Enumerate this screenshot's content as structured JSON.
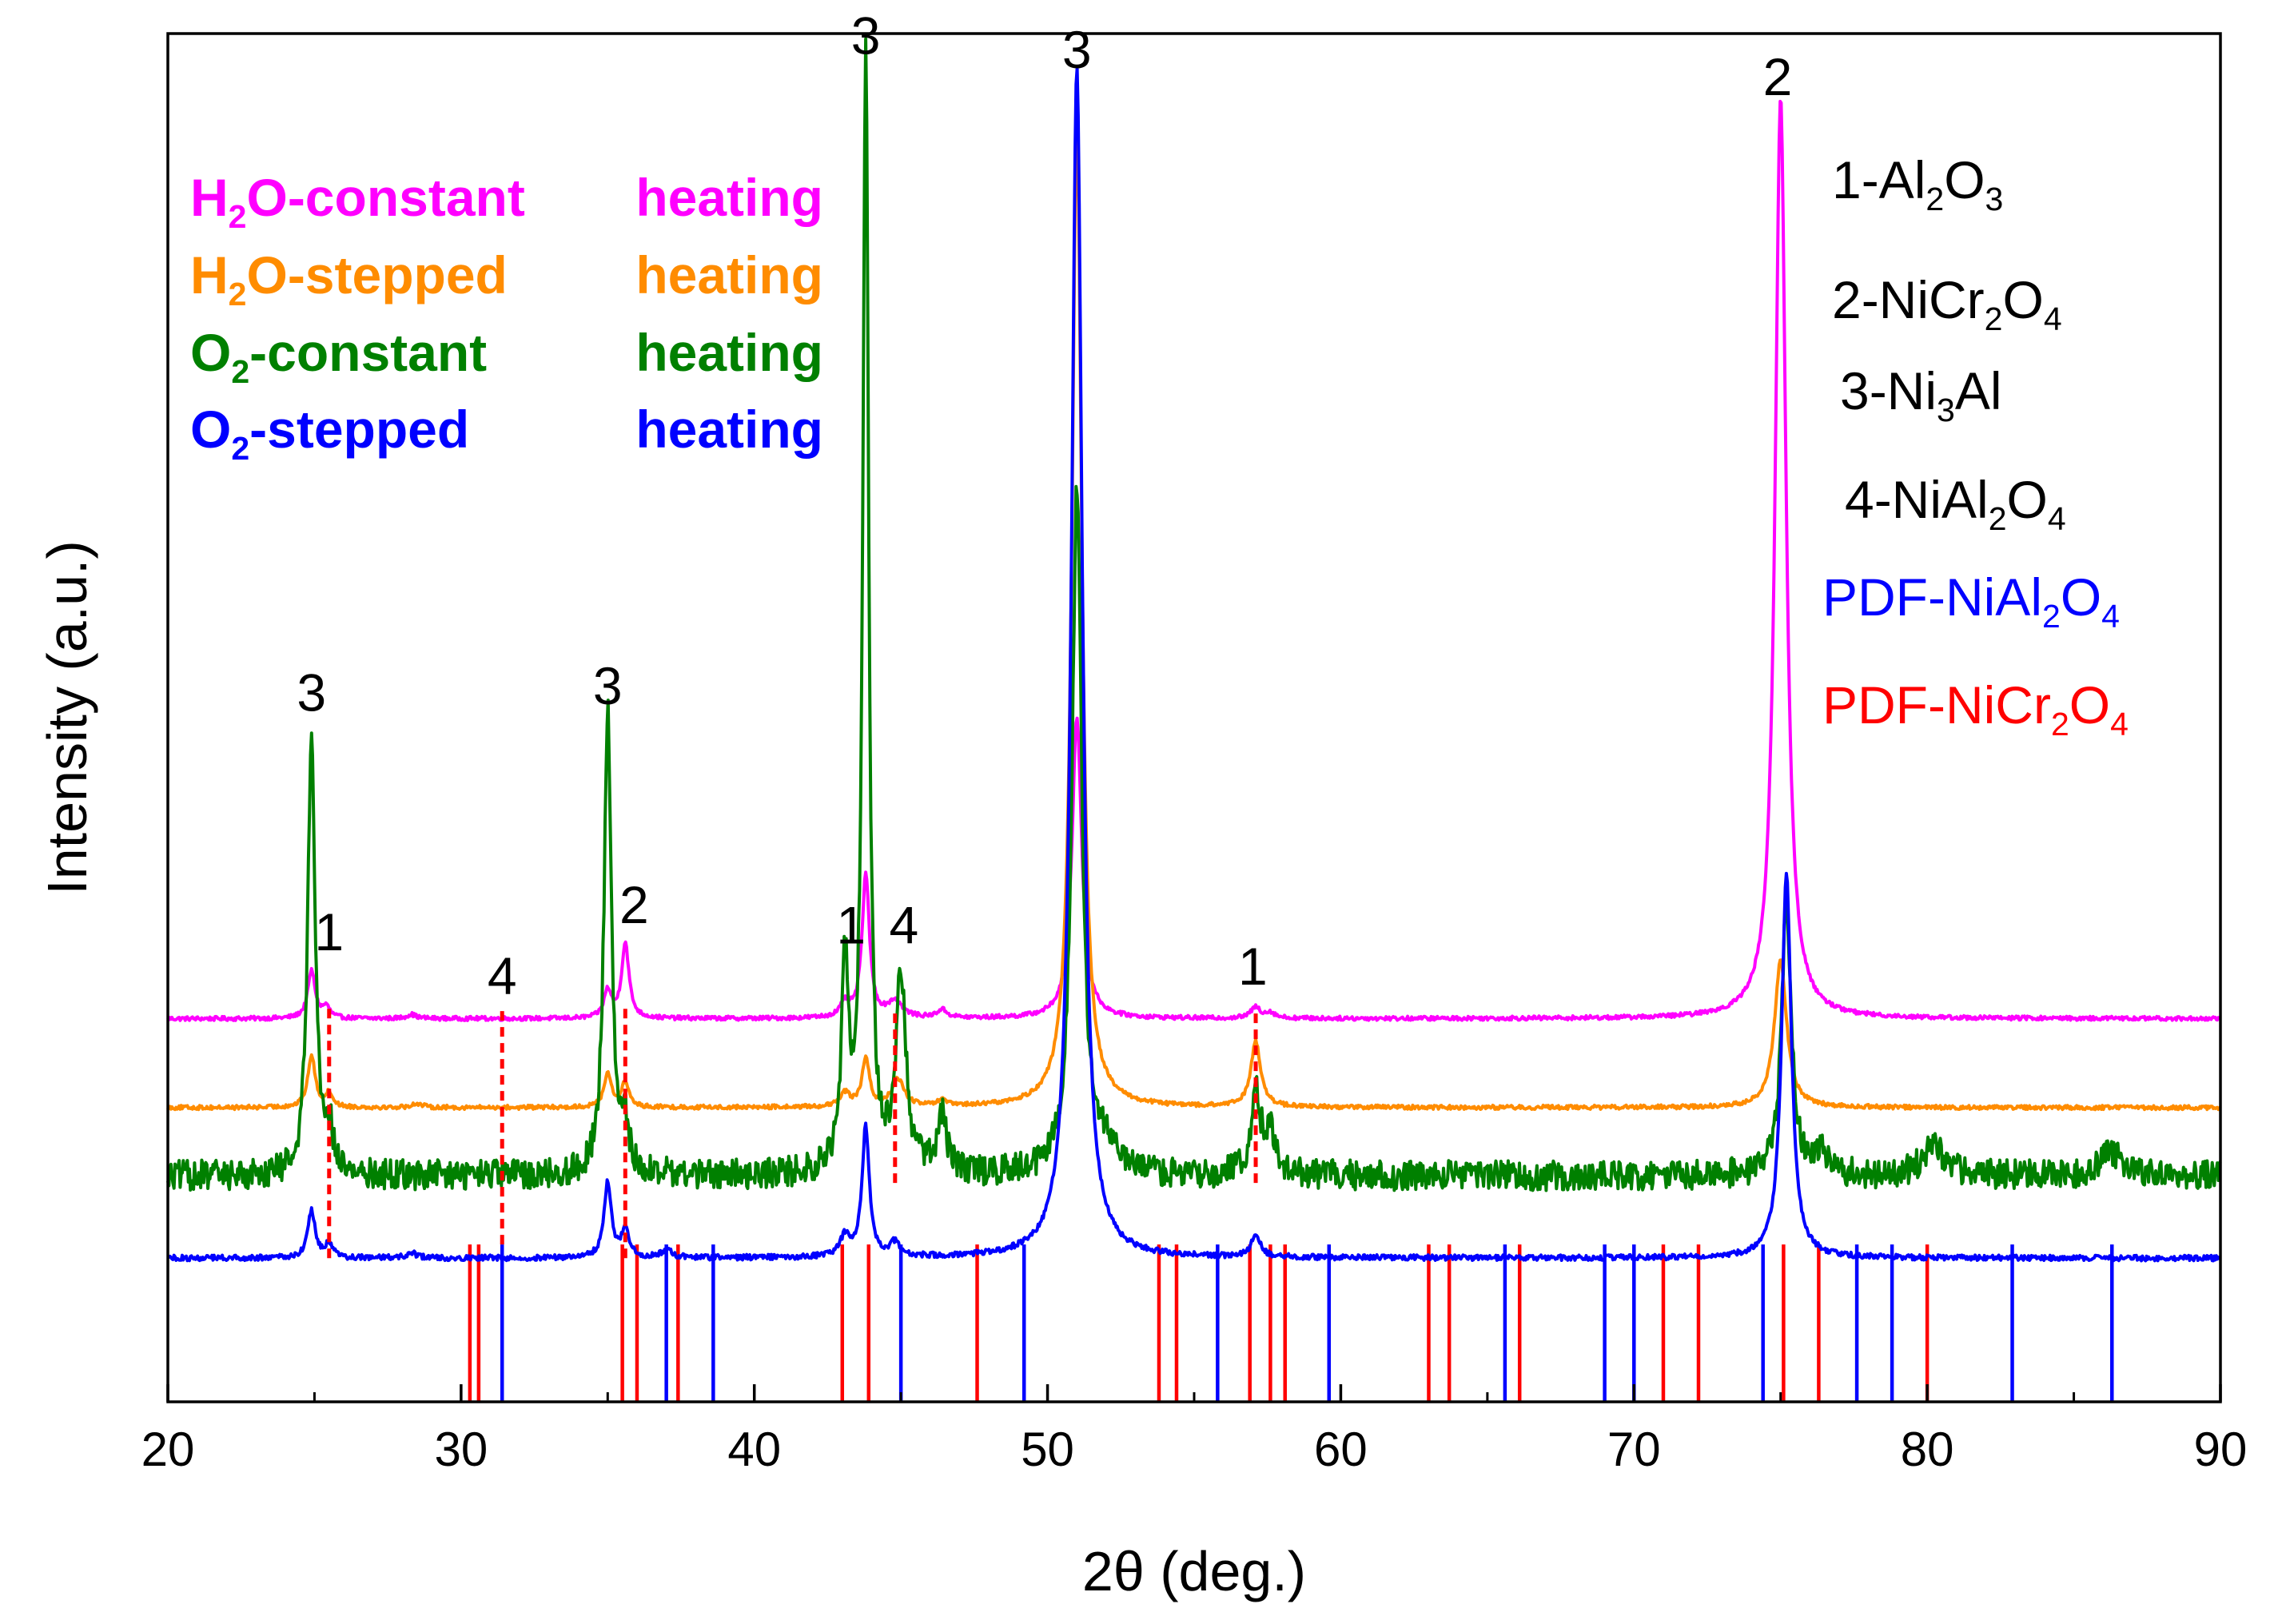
{
  "chart_data": {
    "type": "line",
    "title": "",
    "xlabel": "2θ (deg.)",
    "ylabel": "Intensity (a.u.)",
    "xlim": [
      20,
      90
    ],
    "ylim": [
      0,
      100
    ],
    "xticks": [
      20,
      30,
      40,
      50,
      60,
      70,
      80,
      90
    ],
    "yticks_shown": false,
    "colors": {
      "magenta": "#ff00ff",
      "orange": "#ff8c00",
      "green": "#008000",
      "blue": "#0000ff",
      "red": "#ff0000",
      "axis": "#000000"
    },
    "series": [
      {
        "name": "H2O-constant heating",
        "name_parts": [
          "H",
          "2",
          "O-constant",
          "heating"
        ],
        "color": "#ff00ff",
        "baseline": 28,
        "peaks": [
          [
            24.9,
            3.5,
            0.15
          ],
          [
            25.4,
            0.8,
            0.15
          ],
          [
            28.3,
            0.3,
            0.2
          ],
          [
            35.0,
            2.0,
            0.15
          ],
          [
            35.6,
            5.5,
            0.15
          ],
          [
            43.1,
            1.0,
            0.2
          ],
          [
            43.8,
            10.5,
            0.15
          ],
          [
            44.8,
            1.2,
            0.3
          ],
          [
            46.4,
            0.6,
            0.2
          ],
          [
            51.0,
            22.0,
            0.2
          ],
          [
            57.1,
            0.8,
            0.2
          ],
          [
            57.6,
            0.4,
            0.2
          ],
          [
            75.0,
            67.5,
            0.22
          ]
        ],
        "noise": 0.15
      },
      {
        "name": "H2O-stepped heating",
        "name_parts": [
          "H",
          "2",
          "O-stepped",
          "heating"
        ],
        "color": "#ff8c00",
        "baseline": 21.5,
        "peaks": [
          [
            24.9,
            3.8,
            0.15
          ],
          [
            25.5,
            1.0,
            0.15
          ],
          [
            28.5,
            0.3,
            0.2
          ],
          [
            35.0,
            2.5,
            0.15
          ],
          [
            35.6,
            1.8,
            0.15
          ],
          [
            43.1,
            1.0,
            0.2
          ],
          [
            43.8,
            3.5,
            0.15
          ],
          [
            44.9,
            2.0,
            0.25
          ],
          [
            46.4,
            0.4,
            0.2
          ],
          [
            51.0,
            72.0,
            0.2
          ],
          [
            57.1,
            4.8,
            0.2
          ],
          [
            75.0,
            10.7,
            0.25
          ]
        ],
        "noise": 0.15
      },
      {
        "name": "O2-constant heating",
        "name_parts": [
          "O",
          "2",
          "-constant",
          "heating"
        ],
        "color": "#008000",
        "baseline": 16.5,
        "peaks": [
          [
            24.9,
            33.0,
            0.15
          ],
          [
            25.5,
            3.0,
            0.15
          ],
          [
            35.0,
            34.0,
            0.15
          ],
          [
            35.6,
            3.0,
            0.15
          ],
          [
            43.1,
            15.0,
            0.15
          ],
          [
            43.8,
            81.5,
            0.12
          ],
          [
            45.0,
            14.5,
            0.2
          ],
          [
            46.4,
            4.0,
            0.2
          ],
          [
            51.0,
            50.0,
            0.2
          ],
          [
            52.0,
            2.0,
            0.3
          ],
          [
            57.1,
            6.0,
            0.2
          ],
          [
            57.6,
            3.0,
            0.2
          ],
          [
            75.2,
            20.0,
            0.2
          ],
          [
            76.4,
            2.0,
            0.2
          ],
          [
            80.2,
            2.5,
            0.4
          ],
          [
            86.2,
            2.0,
            0.4
          ]
        ],
        "noise": 1.1
      },
      {
        "name": "O2-stepped heating",
        "name_parts": [
          "O",
          "2",
          "-stepped",
          "heating"
        ],
        "color": "#0000ff",
        "baseline": 10.5,
        "peaks": [
          [
            24.9,
            3.5,
            0.15
          ],
          [
            25.5,
            1.0,
            0.15
          ],
          [
            28.3,
            0.4,
            0.2
          ],
          [
            35.0,
            5.5,
            0.15
          ],
          [
            35.6,
            2.0,
            0.15
          ],
          [
            37.0,
            0.6,
            0.2
          ],
          [
            43.1,
            1.5,
            0.2
          ],
          [
            43.8,
            9.5,
            0.15
          ],
          [
            44.8,
            1.0,
            0.2
          ],
          [
            51.0,
            87.0,
            0.22
          ],
          [
            57.1,
            1.5,
            0.2
          ],
          [
            75.2,
            28.0,
            0.2
          ]
        ],
        "noise": 0.2
      }
    ],
    "reference_lines": [
      {
        "name": "PDF-NiAl2O4",
        "name_parts": [
          "PDF-NiAl",
          "2",
          "O",
          "4"
        ],
        "color": "#0000ff",
        "positions": [
          31.4,
          37.0,
          38.6,
          45.0,
          49.2,
          55.8,
          59.6,
          65.6,
          69.0,
          70.0,
          74.4,
          77.6,
          78.8,
          82.9,
          86.3
        ],
        "height": 11.5
      },
      {
        "name": "PDF-NiCr2O4",
        "name_parts": [
          "PDF-NiCr",
          "2",
          "O",
          "4"
        ],
        "color": "#ff0000",
        "positions": [
          30.3,
          30.6,
          35.5,
          36.0,
          37.4,
          43.0,
          43.9,
          47.6,
          53.8,
          54.4,
          56.9,
          57.6,
          58.1,
          63.0,
          63.7,
          66.1,
          71.0,
          72.2,
          75.1,
          76.3,
          80.0
        ],
        "height": 11.5
      }
    ],
    "dashed_guides": [
      {
        "x": 25.5,
        "y_from": 10.5,
        "y_to": 28.8
      },
      {
        "x": 31.4,
        "y_from": 11.5,
        "y_to": 28.8
      },
      {
        "x": 35.6,
        "y_from": 10.5,
        "y_to": 28.8
      },
      {
        "x": 44.8,
        "y_from": 16.0,
        "y_to": 28.8
      },
      {
        "x": 57.1,
        "y_from": 16.0,
        "y_to": 28.8
      }
    ],
    "peak_labels": [
      {
        "text": "3",
        "x": 24.9,
        "y": 50.5
      },
      {
        "text": "1",
        "x": 25.5,
        "y": 33.0
      },
      {
        "text": "4",
        "x": 31.4,
        "y": 29.8
      },
      {
        "text": "3",
        "x": 35.0,
        "y": 51.0
      },
      {
        "text": "2",
        "x": 35.9,
        "y": 35.0
      },
      {
        "text": "1",
        "x": 43.3,
        "y": 33.5
      },
      {
        "text": "3",
        "x": 43.8,
        "y": 98.5
      },
      {
        "text": "4",
        "x": 45.1,
        "y": 33.5
      },
      {
        "text": "3",
        "x": 51.0,
        "y": 97.5
      },
      {
        "text": "1",
        "x": 57.0,
        "y": 30.5
      },
      {
        "text": "2",
        "x": 74.9,
        "y": 95.5
      }
    ],
    "phase_legend": [
      {
        "parts": [
          "1-Al",
          "2",
          "O",
          "3"
        ]
      },
      {
        "parts": [
          "2-NiCr",
          "2",
          "O",
          "4"
        ]
      },
      {
        "parts": [
          "3-Ni",
          "3",
          "Al"
        ]
      },
      {
        "parts": [
          "4-NiAl",
          "2",
          "O",
          "4"
        ]
      }
    ],
    "legend_placement": "top-left (series), top-right (phases)"
  }
}
